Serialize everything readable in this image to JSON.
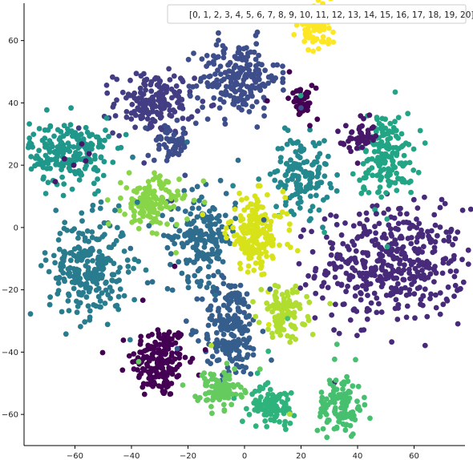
{
  "chart_data": {
    "type": "scatter",
    "title": "",
    "xlabel": "",
    "ylabel": "",
    "xlim": [
      -78,
      78
    ],
    "ylim": [
      -70,
      72
    ],
    "xticks": [
      -60,
      -40,
      -20,
      0,
      20,
      40,
      60
    ],
    "yticks": [
      -60,
      -40,
      -20,
      0,
      20,
      40,
      60
    ],
    "grid": false,
    "spines": "left-bottom",
    "legend": {
      "text": "[0, 1, 2, 3, 4, 5, 6, 7, 8, 9, 10, 11, 12, 13, 14, 15, 16, 17, 18, 19, 20]",
      "placement": "top-right"
    },
    "colormap": "viridis",
    "clusters": [
      {
        "label": 0,
        "color": "#440154",
        "center": [
          -30,
          -43
        ],
        "spread": [
          5,
          6
        ],
        "n": 170
      },
      {
        "label": 1,
        "color": "#481769",
        "center": [
          -62,
          25
        ],
        "spread": [
          2,
          2
        ],
        "n": 0
      },
      {
        "label": 2,
        "color": "#472a7a",
        "center": [
          52,
          -12
        ],
        "spread": [
          13,
          9
        ],
        "n": 420
      },
      {
        "label": 3,
        "color": "#433d84",
        "center": [
          -32,
          40
        ],
        "spread": [
          7,
          5
        ],
        "n": 170
      },
      {
        "label": 4,
        "color": "#3d4e8a",
        "center": [
          -2,
          48
        ],
        "spread": [
          7,
          6
        ],
        "n": 200
      },
      {
        "label": 5,
        "color": "#355e8d",
        "center": [
          -5,
          -32
        ],
        "spread": [
          5,
          8
        ],
        "n": 200
      },
      {
        "label": 6,
        "color": "#2e6d8e",
        "center": [
          -15,
          -3
        ],
        "spread": [
          6,
          7
        ],
        "n": 180
      },
      {
        "label": 7,
        "color": "#297b8e",
        "center": [
          -55,
          -13
        ],
        "spread": [
          7,
          8
        ],
        "n": 260
      },
      {
        "label": 8,
        "color": "#23898e",
        "center": [
          20,
          17
        ],
        "spread": [
          5,
          6
        ],
        "n": 130
      },
      {
        "label": 9,
        "color": "#1f978b",
        "center": [
          -62,
          24
        ],
        "spread": [
          7,
          5
        ],
        "n": 210
      },
      {
        "label": 10,
        "color": "#21a585",
        "center": [
          50,
          23
        ],
        "spread": [
          5,
          7
        ],
        "n": 160
      },
      {
        "label": 11,
        "color": "#2eb37c",
        "center": [
          10,
          -57
        ],
        "spread": [
          4,
          3
        ],
        "n": 90
      },
      {
        "label": 12,
        "color": "#46c06f",
        "center": [
          34,
          -57
        ],
        "spread": [
          4,
          5
        ],
        "n": 110
      },
      {
        "label": 13,
        "color": "#65cb5e",
        "center": [
          -9,
          -52
        ],
        "spread": [
          4,
          3
        ],
        "n": 90
      },
      {
        "label": 14,
        "color": "#89d548",
        "center": [
          -33,
          8
        ],
        "spread": [
          5,
          4
        ],
        "n": 140
      },
      {
        "label": 15,
        "color": "#b0dd2f",
        "center": [
          14,
          -27
        ],
        "spread": [
          4,
          4
        ],
        "n": 100
      },
      {
        "label": 16,
        "color": "#d8e219",
        "center": [
          4,
          -2
        ],
        "spread": [
          5,
          6
        ],
        "n": 180
      },
      {
        "label": 17,
        "color": "#fde725",
        "center": [
          25,
          65
        ],
        "spread": [
          3,
          3
        ],
        "n": 80
      },
      {
        "label": 18,
        "color": "#3d4e8a",
        "center": [
          -26,
          27
        ],
        "spread": [
          3,
          3
        ],
        "n": 50
      },
      {
        "label": 19,
        "color": "#440154",
        "center": [
          20,
          40
        ],
        "spread": [
          2,
          2
        ],
        "n": 40
      },
      {
        "label": 20,
        "color": "#481769",
        "center": [
          41,
          29
        ],
        "spread": [
          3,
          2
        ],
        "n": 40
      }
    ]
  }
}
